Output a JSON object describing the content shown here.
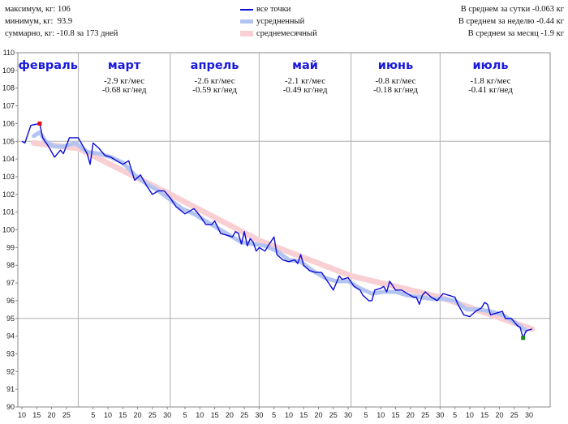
{
  "stats": {
    "max": "максимум, кг: 106",
    "min": "минимум, кг:  93.9",
    "total": "суммарно, кг: -10.8 за 173 дней"
  },
  "averages": {
    "per_day": "В среднем за сутки -0.063 кг",
    "per_week": "В среднем за неделю -0.44 кг",
    "per_month": "В среднем за месяц -1.9 кг"
  },
  "legend": {
    "all_points": "все точки",
    "smoothed": "усредненный",
    "monthly": "среднемесячный"
  },
  "colors": {
    "all_points": "#0b0bd6",
    "smoothed": "#b4c4f2",
    "monthly": "#f8cfd3",
    "max_marker": "#e01010",
    "min_marker": "#1a8a1a",
    "grid": "#b0b0b0",
    "month_label": "#1a1adb"
  },
  "chart_data": {
    "type": "line",
    "ylim": [
      90,
      110
    ],
    "y_ticks": [
      "90",
      "91",
      "92",
      "93",
      "94",
      "95",
      "96",
      "97",
      "98",
      "99",
      "100",
      "101",
      "102",
      "103",
      "104",
      "105",
      "106",
      "107",
      "108",
      "109",
      "110"
    ],
    "x_ticks": [
      {
        "day": 0,
        "label": "10"
      },
      {
        "day": 5,
        "label": "15"
      },
      {
        "day": 10,
        "label": "20"
      },
      {
        "day": 15,
        "label": "25"
      },
      {
        "day": 24,
        "label": "5"
      },
      {
        "day": 29,
        "label": "10"
      },
      {
        "day": 34,
        "label": "15"
      },
      {
        "day": 39,
        "label": "20"
      },
      {
        "day": 44,
        "label": "25"
      },
      {
        "day": 49,
        "label": "30"
      },
      {
        "day": 55,
        "label": "5"
      },
      {
        "day": 60,
        "label": "10"
      },
      {
        "day": 65,
        "label": "15"
      },
      {
        "day": 70,
        "label": "20"
      },
      {
        "day": 75,
        "label": "25"
      },
      {
        "day": 80,
        "label": "30"
      },
      {
        "day": 85,
        "label": "5"
      },
      {
        "day": 90,
        "label": "10"
      },
      {
        "day": 95,
        "label": "15"
      },
      {
        "day": 100,
        "label": "20"
      },
      {
        "day": 105,
        "label": "25"
      },
      {
        "day": 110,
        "label": "30"
      },
      {
        "day": 116,
        "label": "5"
      },
      {
        "day": 121,
        "label": "10"
      },
      {
        "day": 126,
        "label": "15"
      },
      {
        "day": 131,
        "label": "20"
      },
      {
        "day": 136,
        "label": "25"
      },
      {
        "day": 141,
        "label": "30"
      },
      {
        "day": 146,
        "label": "5"
      },
      {
        "day": 151,
        "label": "10"
      },
      {
        "day": 156,
        "label": "15"
      },
      {
        "day": 161,
        "label": "20"
      },
      {
        "day": 166,
        "label": "25"
      },
      {
        "day": 171,
        "label": "30"
      }
    ],
    "x_max": 175,
    "months": [
      {
        "name": "февраль",
        "start": -2,
        "end": 19,
        "rate_month": "",
        "rate_week": ""
      },
      {
        "name": "март",
        "start": 19,
        "end": 50,
        "rate_month": "-2.9 кг/мес",
        "rate_week": "-0.68 кг/нед"
      },
      {
        "name": "апрель",
        "start": 50,
        "end": 80,
        "rate_month": "-2.6 кг/мес",
        "rate_week": "-0.59 кг/нед"
      },
      {
        "name": "май",
        "start": 80,
        "end": 111,
        "rate_month": "-2.1 кг/мес",
        "rate_week": "-0.49 кг/нед"
      },
      {
        "name": "июнь",
        "start": 111,
        "end": 141,
        "rate_month": "-0.8 кг/мес",
        "rate_week": "-0.18 кг/нед"
      },
      {
        "name": "июль",
        "start": 141,
        "end": 175,
        "rate_month": "-1.8 кг/мес",
        "rate_week": "-0.41 кг/нед"
      }
    ],
    "series": [
      {
        "name": "все точки",
        "points": [
          [
            0,
            105.0
          ],
          [
            1,
            104.9
          ],
          [
            3,
            105.9
          ],
          [
            6,
            106.0
          ],
          [
            7,
            105.2
          ],
          [
            9,
            104.7
          ],
          [
            11,
            104.1
          ],
          [
            13,
            104.5
          ],
          [
            14,
            104.3
          ],
          [
            16,
            105.2
          ],
          [
            18,
            105.2
          ],
          [
            19,
            105.2
          ],
          [
            21,
            104.6
          ],
          [
            22,
            104.3
          ],
          [
            23,
            103.7
          ],
          [
            24,
            104.9
          ],
          [
            26,
            104.6
          ],
          [
            28,
            104.2
          ],
          [
            30,
            104.1
          ],
          [
            32,
            103.9
          ],
          [
            34,
            103.7
          ],
          [
            36,
            103.9
          ],
          [
            38,
            102.8
          ],
          [
            40,
            103.1
          ],
          [
            42,
            102.5
          ],
          [
            44,
            102.0
          ],
          [
            46,
            102.2
          ],
          [
            48,
            102.2
          ],
          [
            50,
            101.8
          ],
          [
            52,
            101.3
          ],
          [
            55,
            100.9
          ],
          [
            58,
            101.2
          ],
          [
            60,
            100.8
          ],
          [
            62,
            100.3
          ],
          [
            64,
            100.3
          ],
          [
            65,
            100.5
          ],
          [
            67,
            99.8
          ],
          [
            69,
            99.7
          ],
          [
            71,
            99.6
          ],
          [
            72,
            99.9
          ],
          [
            73,
            99.8
          ],
          [
            74,
            99.2
          ],
          [
            75,
            99.9
          ],
          [
            76,
            99.1
          ],
          [
            77,
            99.5
          ],
          [
            78,
            99.3
          ],
          [
            79,
            98.8
          ],
          [
            80,
            99.0
          ],
          [
            82,
            98.8
          ],
          [
            83,
            99.1
          ],
          [
            85,
            99.6
          ],
          [
            86,
            98.6
          ],
          [
            88,
            98.3
          ],
          [
            90,
            98.2
          ],
          [
            92,
            98.3
          ],
          [
            93,
            98.1
          ],
          [
            94,
            98.6
          ],
          [
            95,
            98.0
          ],
          [
            97,
            97.7
          ],
          [
            99,
            97.6
          ],
          [
            101,
            97.6
          ],
          [
            103,
            97.1
          ],
          [
            105,
            96.6
          ],
          [
            106,
            97.0
          ],
          [
            107,
            97.4
          ],
          [
            108,
            97.2
          ],
          [
            110,
            97.3
          ],
          [
            112,
            96.8
          ],
          [
            114,
            96.6
          ],
          [
            115,
            96.3
          ],
          [
            117,
            96.0
          ],
          [
            118,
            96.0
          ],
          [
            119,
            96.6
          ],
          [
            121,
            96.7
          ],
          [
            122,
            96.8
          ],
          [
            123,
            96.5
          ],
          [
            124,
            97.1
          ],
          [
            126,
            96.6
          ],
          [
            128,
            96.6
          ],
          [
            130,
            96.4
          ],
          [
            132,
            96.2
          ],
          [
            133,
            96.2
          ],
          [
            134,
            95.8
          ],
          [
            135,
            96.3
          ],
          [
            136,
            96.5
          ],
          [
            138,
            96.2
          ],
          [
            140,
            96.0
          ],
          [
            142,
            96.4
          ],
          [
            144,
            96.3
          ],
          [
            146,
            96.2
          ],
          [
            147,
            95.8
          ],
          [
            149,
            95.2
          ],
          [
            151,
            95.1
          ],
          [
            153,
            95.4
          ],
          [
            155,
            95.6
          ],
          [
            156,
            95.9
          ],
          [
            157,
            95.8
          ],
          [
            158,
            95.2
          ],
          [
            160,
            95.3
          ],
          [
            162,
            95.4
          ],
          [
            163,
            95.0
          ],
          [
            165,
            95.0
          ],
          [
            166,
            94.8
          ],
          [
            167,
            94.6
          ],
          [
            168,
            94.5
          ],
          [
            169,
            93.9
          ],
          [
            170,
            94.3
          ],
          [
            172,
            94.4
          ]
        ]
      },
      {
        "name": "усредненный",
        "points": [
          [
            4,
            105.3
          ],
          [
            6,
            105.5
          ],
          [
            8,
            105.0
          ],
          [
            11,
            104.7
          ],
          [
            14,
            104.7
          ],
          [
            18,
            104.9
          ],
          [
            22,
            104.4
          ],
          [
            26,
            104.3
          ],
          [
            30,
            104.1
          ],
          [
            34,
            103.8
          ],
          [
            38,
            103.1
          ],
          [
            42,
            102.6
          ],
          [
            46,
            102.2
          ],
          [
            50,
            101.7
          ],
          [
            54,
            101.2
          ],
          [
            58,
            100.9
          ],
          [
            62,
            100.5
          ],
          [
            66,
            100.1
          ],
          [
            70,
            99.7
          ],
          [
            74,
            99.3
          ],
          [
            78,
            99.2
          ],
          [
            82,
            99.1
          ],
          [
            86,
            98.8
          ],
          [
            90,
            98.3
          ],
          [
            94,
            98.2
          ],
          [
            98,
            97.7
          ],
          [
            102,
            97.3
          ],
          [
            106,
            97.1
          ],
          [
            110,
            97.1
          ],
          [
            114,
            96.7
          ],
          [
            118,
            96.4
          ],
          [
            122,
            96.5
          ],
          [
            126,
            96.5
          ],
          [
            130,
            96.3
          ],
          [
            134,
            96.2
          ],
          [
            138,
            96.1
          ],
          [
            142,
            96.1
          ],
          [
            146,
            96.0
          ],
          [
            150,
            95.5
          ],
          [
            154,
            95.5
          ],
          [
            158,
            95.4
          ],
          [
            162,
            95.2
          ],
          [
            166,
            94.8
          ],
          [
            170,
            94.3
          ]
        ]
      },
      {
        "name": "среднемесячный",
        "points": [
          [
            4,
            104.9
          ],
          [
            19,
            104.6
          ],
          [
            50,
            102.0
          ],
          [
            80,
            99.4
          ],
          [
            111,
            97.4
          ],
          [
            141,
            96.2
          ],
          [
            172,
            94.4
          ]
        ]
      }
    ],
    "max_point": [
      6,
      106.0
    ],
    "min_point": [
      169,
      93.9
    ]
  }
}
